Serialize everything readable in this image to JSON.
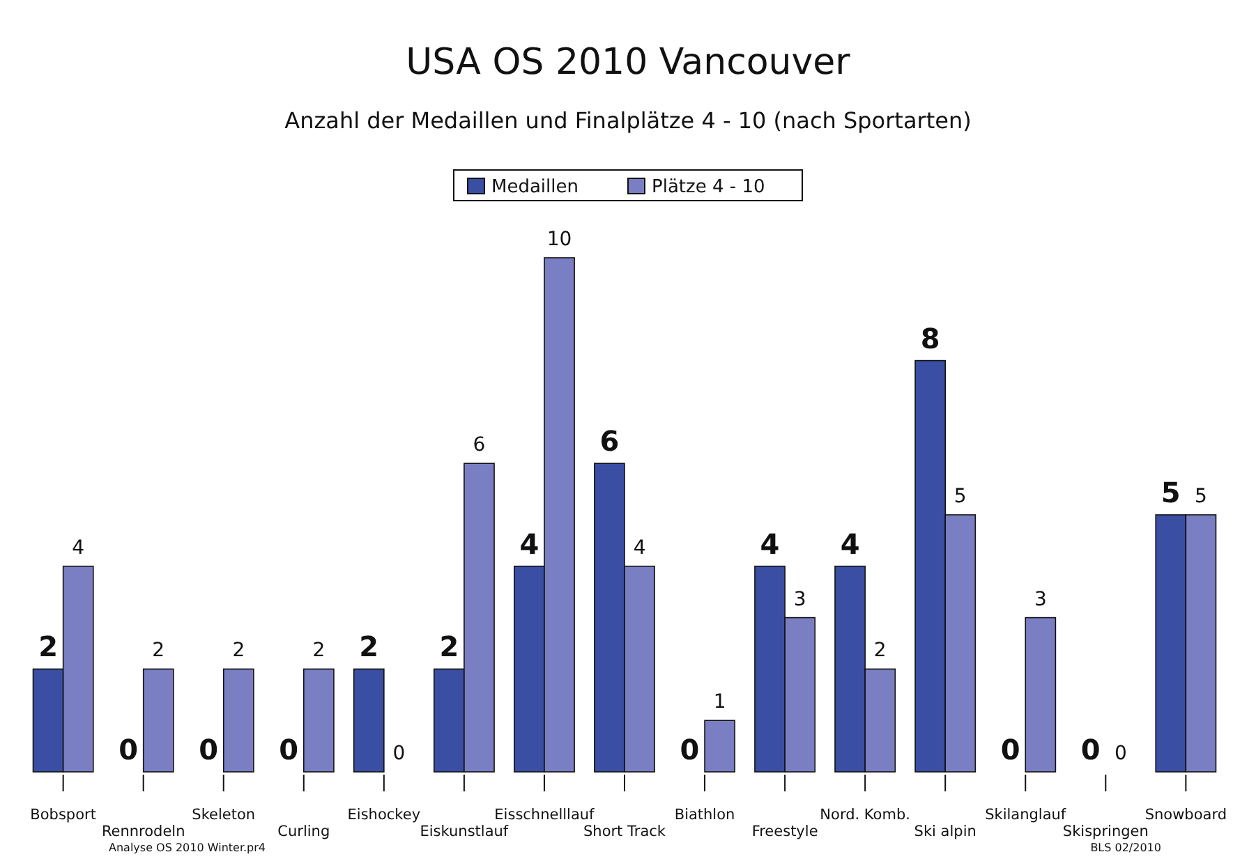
{
  "chart_data": {
    "type": "bar",
    "title": "USA OS 2010 Vancouver",
    "subtitle": "Anzahl der Medaillen und Finalplätze 4 - 10 (nach Sportarten)",
    "categories": [
      "Bobsport",
      "Rennrodeln",
      "Skeleton",
      "Curling",
      "Eishockey",
      "Eiskunstlauf",
      "Eisschnelllauf",
      "Short Track",
      "Biathlon",
      "Freestyle",
      "Nord. Komb.",
      "Ski alpin",
      "Skilanglauf",
      "Skispringen",
      "Snowboard"
    ],
    "series": [
      {
        "name": "Medaillen",
        "color": "#3a4fa3",
        "values": [
          2,
          0,
          0,
          0,
          2,
          2,
          4,
          6,
          0,
          4,
          4,
          8,
          0,
          0,
          5
        ]
      },
      {
        "name": "Plätze 4 - 10",
        "color": "#7a7ec2",
        "values": [
          4,
          2,
          2,
          2,
          0,
          6,
          10,
          4,
          1,
          3,
          2,
          5,
          3,
          0,
          5
        ]
      }
    ],
    "data_labels": true,
    "legend": "top",
    "annotations": [
      "Analyse OS 2010 Winter.pr4",
      "BLS 02/2010"
    ]
  }
}
